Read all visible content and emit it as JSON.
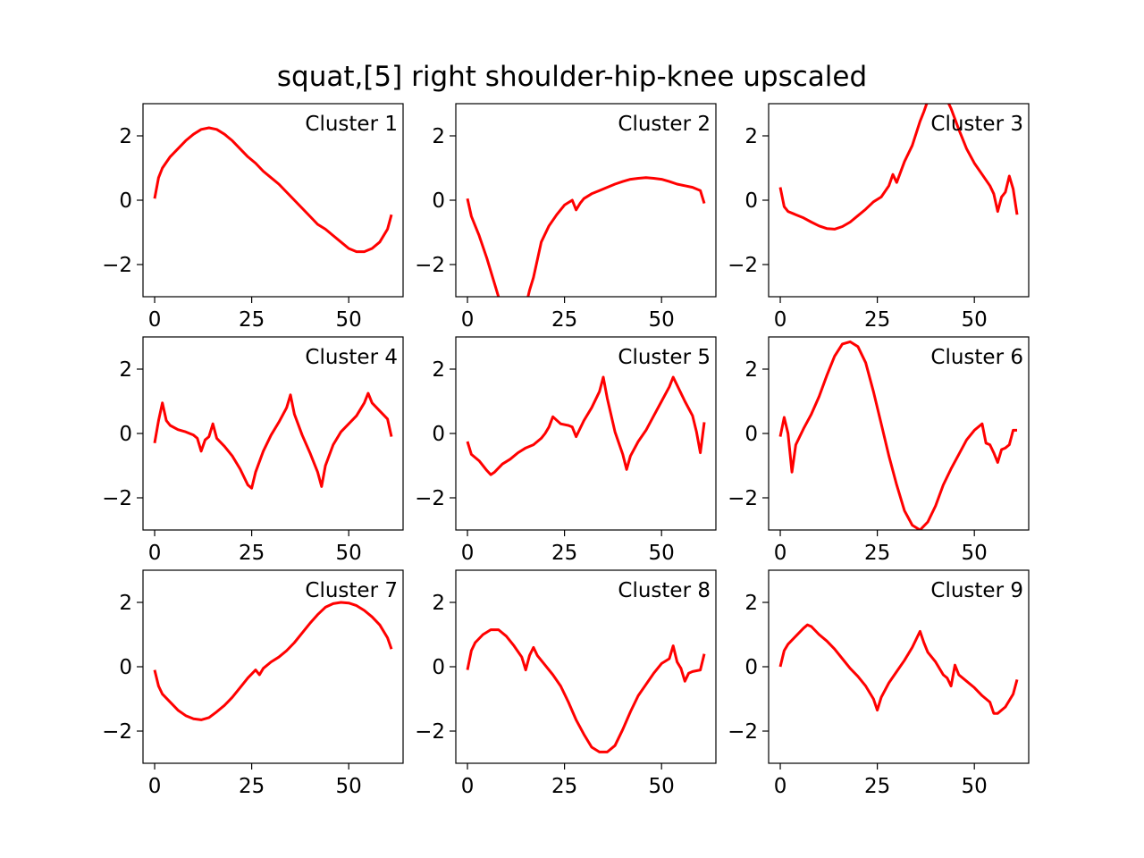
{
  "figure": {
    "title": "squat,[5] right shoulder-hip-knee upscaled"
  },
  "colors": {
    "line": "#ff0000",
    "axes": "#000000",
    "background": "#ffffff"
  },
  "chart_data": [
    {
      "type": "line",
      "label": "Cluster 1",
      "xlim": [
        -3,
        64
      ],
      "ylim": [
        -3,
        3
      ],
      "xticks": [
        0,
        25,
        50
      ],
      "yticks": [
        2,
        0,
        -2
      ],
      "ytick_labels": [
        "2",
        "0",
        "−2"
      ],
      "x": [
        0,
        1,
        2,
        4,
        6,
        8,
        10,
        12,
        14,
        16,
        18,
        20,
        22,
        24,
        26,
        28,
        30,
        32,
        34,
        36,
        38,
        40,
        42,
        44,
        46,
        48,
        50,
        52,
        54,
        56,
        58,
        60,
        61
      ],
      "y": [
        0.05,
        0.7,
        1.0,
        1.35,
        1.6,
        1.85,
        2.05,
        2.2,
        2.25,
        2.2,
        2.05,
        1.85,
        1.6,
        1.35,
        1.15,
        0.9,
        0.7,
        0.5,
        0.25,
        0.0,
        -0.25,
        -0.5,
        -0.75,
        -0.9,
        -1.1,
        -1.3,
        -1.5,
        -1.6,
        -1.6,
        -1.5,
        -1.3,
        -0.9,
        -0.45
      ]
    },
    {
      "type": "line",
      "label": "Cluster 2",
      "xlim": [
        -3,
        64
      ],
      "ylim": [
        -3,
        3
      ],
      "xticks": [
        0,
        25,
        50
      ],
      "yticks": [
        2,
        0,
        -2
      ],
      "ytick_labels": [
        "2",
        "0",
        "−2"
      ],
      "x": [
        0,
        1,
        3,
        5,
        7,
        8.5,
        9,
        15,
        16,
        17,
        19,
        21,
        23,
        25,
        27,
        28,
        29,
        30,
        32,
        34,
        36,
        38,
        40,
        42,
        44,
        46,
        48,
        50,
        52,
        54,
        56,
        58,
        60,
        61
      ],
      "y": [
        0.05,
        -0.5,
        -1.1,
        -1.8,
        -2.6,
        -3.2,
        -3.3,
        -3.3,
        -2.8,
        -2.4,
        -1.3,
        -0.8,
        -0.45,
        -0.15,
        0.0,
        -0.3,
        -0.1,
        0.05,
        0.2,
        0.3,
        0.4,
        0.5,
        0.58,
        0.65,
        0.68,
        0.7,
        0.68,
        0.65,
        0.58,
        0.5,
        0.45,
        0.4,
        0.3,
        -0.1
      ]
    },
    {
      "type": "line",
      "label": "Cluster 3",
      "xlim": [
        -3,
        64
      ],
      "ylim": [
        -3,
        3
      ],
      "xticks": [
        0,
        25,
        50
      ],
      "yticks": [
        2,
        0,
        -2
      ],
      "ytick_labels": [
        "2",
        "0",
        "−2"
      ],
      "x": [
        0,
        1,
        2,
        4,
        6,
        8,
        10,
        12,
        14,
        16,
        18,
        20,
        22,
        24,
        26,
        28,
        29,
        30,
        32,
        34,
        36,
        37,
        38,
        43,
        44,
        46,
        48,
        50,
        52,
        54,
        55,
        56,
        57,
        58,
        59,
        60,
        61
      ],
      "y": [
        0.4,
        -0.2,
        -0.35,
        -0.45,
        -0.55,
        -0.68,
        -0.8,
        -0.88,
        -0.9,
        -0.82,
        -0.68,
        -0.48,
        -0.28,
        -0.05,
        0.1,
        0.45,
        0.8,
        0.55,
        1.2,
        1.7,
        2.45,
        2.75,
        3.1,
        3.1,
        2.85,
        2.2,
        1.6,
        1.15,
        0.8,
        0.45,
        0.2,
        -0.35,
        0.1,
        0.25,
        0.75,
        0.35,
        -0.45
      ]
    },
    {
      "type": "line",
      "label": "Cluster 4",
      "xlim": [
        -3,
        64
      ],
      "ylim": [
        -3,
        3
      ],
      "xticks": [
        0,
        25,
        50
      ],
      "yticks": [
        2,
        0,
        -2
      ],
      "ytick_labels": [
        "2",
        "0",
        "−2"
      ],
      "x": [
        0,
        1,
        2,
        3,
        4,
        6,
        8,
        10,
        11,
        12,
        13,
        14,
        15,
        16,
        18,
        20,
        22,
        24,
        25,
        26,
        28,
        30,
        32,
        34,
        35,
        36,
        38,
        40,
        42,
        43,
        44,
        46,
        48,
        50,
        52,
        54,
        55,
        56,
        58,
        60,
        61
      ],
      "y": [
        -0.3,
        0.4,
        0.95,
        0.4,
        0.25,
        0.12,
        0.05,
        -0.05,
        -0.15,
        -0.55,
        -0.2,
        -0.1,
        0.3,
        -0.15,
        -0.4,
        -0.7,
        -1.1,
        -1.6,
        -1.7,
        -1.2,
        -0.55,
        -0.05,
        0.35,
        0.8,
        1.2,
        0.6,
        -0.05,
        -0.6,
        -1.2,
        -1.65,
        -1.0,
        -0.35,
        0.05,
        0.3,
        0.55,
        0.95,
        1.25,
        0.95,
        0.7,
        0.45,
        -0.1
      ]
    },
    {
      "type": "line",
      "label": "Cluster 5",
      "xlim": [
        -3,
        64
      ],
      "ylim": [
        -3,
        3
      ],
      "xticks": [
        0,
        25,
        50
      ],
      "yticks": [
        2,
        0,
        -2
      ],
      "ytick_labels": [
        "2",
        "0",
        "−2"
      ],
      "x": [
        0,
        1,
        3,
        5,
        6,
        7,
        9,
        11,
        13,
        15,
        17,
        19,
        20,
        21,
        22,
        24,
        26,
        27,
        28,
        30,
        32,
        34,
        35,
        36,
        38,
        40,
        41,
        42,
        44,
        46,
        48,
        50,
        52,
        53,
        54,
        56,
        58,
        59,
        60,
        61
      ],
      "y": [
        -0.25,
        -0.65,
        -0.85,
        -1.15,
        -1.28,
        -1.2,
        -0.95,
        -0.8,
        -0.6,
        -0.45,
        -0.35,
        -0.15,
        0.0,
        0.2,
        0.52,
        0.3,
        0.25,
        0.2,
        -0.1,
        0.4,
        0.8,
        1.3,
        1.75,
        1.1,
        0.05,
        -0.65,
        -1.12,
        -0.7,
        -0.25,
        0.1,
        0.55,
        1.0,
        1.45,
        1.75,
        1.5,
        1.0,
        0.55,
        0.05,
        -0.6,
        0.35
      ]
    },
    {
      "type": "line",
      "label": "Cluster 6",
      "xlim": [
        -3,
        64
      ],
      "ylim": [
        -3,
        3
      ],
      "xticks": [
        0,
        25,
        50
      ],
      "yticks": [
        2,
        0,
        -2
      ],
      "ytick_labels": [
        "2",
        "0",
        "−2"
      ],
      "x": [
        0,
        1,
        2,
        3,
        4,
        6,
        8,
        10,
        12,
        14,
        16,
        18,
        20,
        22,
        24,
        26,
        28,
        30,
        32,
        34,
        36,
        38,
        40,
        42,
        44,
        46,
        48,
        50,
        52,
        53,
        54,
        55,
        56,
        57,
        58,
        59,
        60,
        61
      ],
      "y": [
        -0.1,
        0.5,
        0.0,
        -1.2,
        -0.35,
        0.15,
        0.6,
        1.15,
        1.8,
        2.4,
        2.78,
        2.85,
        2.7,
        2.2,
        1.3,
        0.3,
        -0.7,
        -1.6,
        -2.4,
        -2.85,
        -3.0,
        -2.75,
        -2.25,
        -1.6,
        -1.1,
        -0.65,
        -0.2,
        0.1,
        0.3,
        -0.3,
        -0.35,
        -0.6,
        -0.9,
        -0.5,
        -0.45,
        -0.35,
        0.1,
        0.1
      ]
    },
    {
      "type": "line",
      "label": "Cluster 7",
      "xlim": [
        -3,
        64
      ],
      "ylim": [
        -3,
        3
      ],
      "xticks": [
        0,
        25,
        50
      ],
      "yticks": [
        2,
        0,
        -2
      ],
      "ytick_labels": [
        "2",
        "0",
        "−2"
      ],
      "x": [
        0,
        1,
        2,
        4,
        6,
        8,
        10,
        12,
        14,
        16,
        18,
        20,
        22,
        24,
        26,
        27,
        28,
        30,
        32,
        34,
        36,
        38,
        40,
        42,
        44,
        46,
        48,
        50,
        52,
        54,
        56,
        58,
        60,
        61
      ],
      "y": [
        -0.1,
        -0.6,
        -0.85,
        -1.1,
        -1.35,
        -1.52,
        -1.62,
        -1.65,
        -1.58,
        -1.4,
        -1.2,
        -0.95,
        -0.65,
        -0.35,
        -0.1,
        -0.25,
        -0.05,
        0.15,
        0.3,
        0.5,
        0.75,
        1.05,
        1.35,
        1.62,
        1.85,
        1.96,
        2.0,
        1.98,
        1.9,
        1.75,
        1.55,
        1.3,
        0.9,
        0.55
      ]
    },
    {
      "type": "line",
      "label": "Cluster 8",
      "xlim": [
        -3,
        64
      ],
      "ylim": [
        -3,
        3
      ],
      "xticks": [
        0,
        25,
        50
      ],
      "yticks": [
        2,
        0,
        -2
      ],
      "ytick_labels": [
        "2",
        "0",
        "−2"
      ],
      "x": [
        0,
        1,
        2,
        4,
        6,
        8,
        10,
        12,
        14,
        15,
        16,
        17,
        18,
        20,
        22,
        24,
        26,
        28,
        30,
        32,
        34,
        36,
        38,
        40,
        42,
        44,
        46,
        48,
        50,
        52,
        53,
        54,
        55,
        56,
        57,
        58,
        60,
        61
      ],
      "y": [
        -0.1,
        0.5,
        0.75,
        1.0,
        1.15,
        1.15,
        0.95,
        0.65,
        0.3,
        -0.1,
        0.35,
        0.6,
        0.35,
        0.05,
        -0.25,
        -0.6,
        -1.1,
        -1.65,
        -2.1,
        -2.5,
        -2.65,
        -2.65,
        -2.45,
        -1.95,
        -1.4,
        -0.9,
        -0.55,
        -0.2,
        0.1,
        0.25,
        0.65,
        0.15,
        -0.05,
        -0.45,
        -0.2,
        -0.15,
        -0.1,
        0.4
      ]
    },
    {
      "type": "line",
      "label": "Cluster 9",
      "xlim": [
        -3,
        64
      ],
      "ylim": [
        -3,
        3
      ],
      "xticks": [
        0,
        25,
        50
      ],
      "yticks": [
        2,
        0,
        -2
      ],
      "ytick_labels": [
        "2",
        "0",
        "−2"
      ],
      "x": [
        0,
        1,
        2,
        4,
        6,
        7,
        8,
        10,
        12,
        14,
        16,
        18,
        20,
        22,
        24,
        25,
        26,
        28,
        30,
        32,
        34,
        36,
        37,
        38,
        40,
        42,
        43,
        44,
        45,
        46,
        48,
        50,
        52,
        54,
        55,
        56,
        58,
        60,
        61
      ],
      "y": [
        0.0,
        0.5,
        0.7,
        0.95,
        1.2,
        1.3,
        1.25,
        1.0,
        0.8,
        0.55,
        0.25,
        -0.05,
        -0.3,
        -0.6,
        -1.0,
        -1.35,
        -0.95,
        -0.5,
        -0.15,
        0.2,
        0.6,
        1.1,
        0.75,
        0.45,
        0.15,
        -0.25,
        -0.35,
        -0.6,
        0.05,
        -0.25,
        -0.45,
        -0.65,
        -0.9,
        -1.1,
        -1.45,
        -1.45,
        -1.25,
        -0.85,
        -0.4
      ]
    }
  ]
}
